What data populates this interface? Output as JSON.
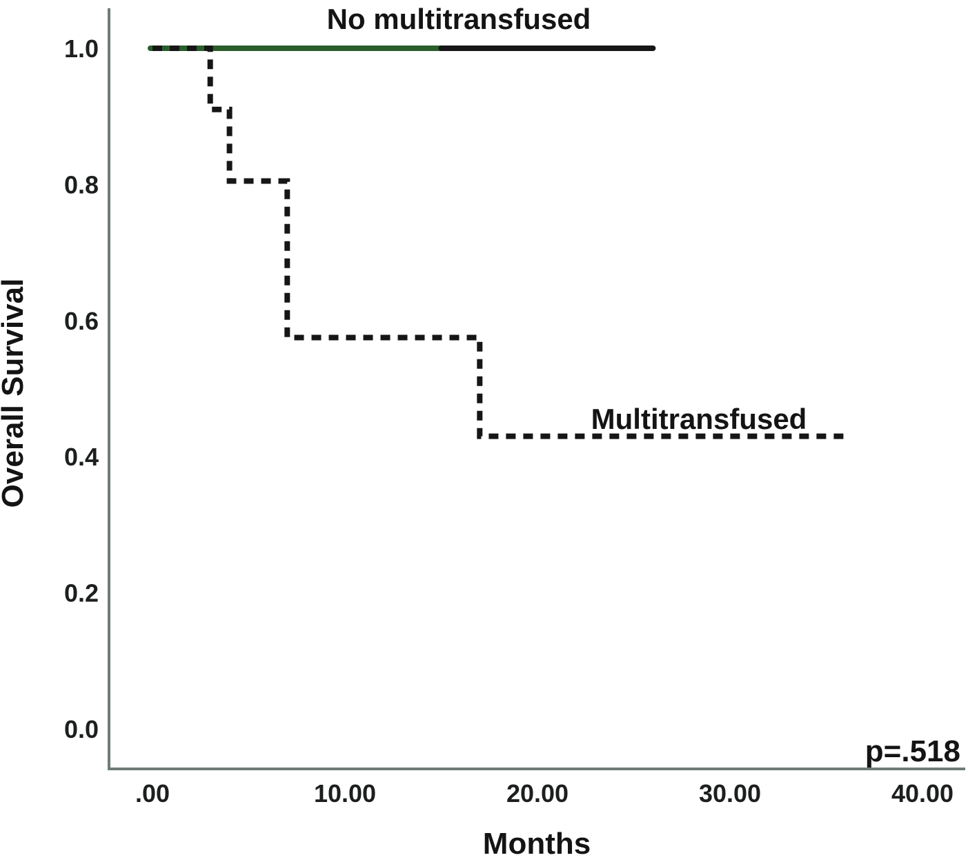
{
  "figure": {
    "p_value_label": "p=.518"
  },
  "chart_data": {
    "type": "line",
    "subtype": "kaplan-meier-step",
    "title": "",
    "xlabel": "Months",
    "ylabel": "Overall Survival",
    "xlim": [
      0,
      40
    ],
    "ylim": [
      0.0,
      1.0
    ],
    "grid": false,
    "legend_position": "inline-labels",
    "x_ticks": [
      {
        "label": ".00",
        "value": 0
      },
      {
        "label": "10.00",
        "value": 10
      },
      {
        "label": "20.00",
        "value": 20
      },
      {
        "label": "30.00",
        "value": 30
      },
      {
        "label": "40.00",
        "value": 40
      }
    ],
    "y_ticks": [
      {
        "label": "0.0",
        "value": 0.0
      },
      {
        "label": "0.2",
        "value": 0.2
      },
      {
        "label": "0.4",
        "value": 0.4
      },
      {
        "label": "0.6",
        "value": 0.6
      },
      {
        "label": "0.8",
        "value": 0.8
      },
      {
        "label": "1.0",
        "value": 1.0
      }
    ],
    "annotations": [
      {
        "text": "p=.518",
        "position": "bottom-right"
      }
    ],
    "series": [
      {
        "name": "No multitransfused",
        "style": "solid",
        "points": [
          {
            "x": 0,
            "y": 1.0
          },
          {
            "x": 26,
            "y": 1.0
          }
        ],
        "color_segments": [
          {
            "from_x": 0,
            "to_x": 15,
            "color": "#2a5e2b"
          },
          {
            "from_x": 15,
            "to_x": 26,
            "color": "#161616"
          }
        ]
      },
      {
        "name": "Multitransfused",
        "style": "dashed",
        "color": "#161616",
        "points": [
          {
            "x": 0,
            "y": 1.0
          },
          {
            "x": 3,
            "y": 1.0
          },
          {
            "x": 3,
            "y": 0.91
          },
          {
            "x": 4,
            "y": 0.91
          },
          {
            "x": 4,
            "y": 0.805
          },
          {
            "x": 7,
            "y": 0.805
          },
          {
            "x": 7,
            "y": 0.575
          },
          {
            "x": 17,
            "y": 0.575
          },
          {
            "x": 17,
            "y": 0.43
          },
          {
            "x": 36,
            "y": 0.43
          }
        ]
      }
    ],
    "axis_color": "#6e7c79"
  }
}
